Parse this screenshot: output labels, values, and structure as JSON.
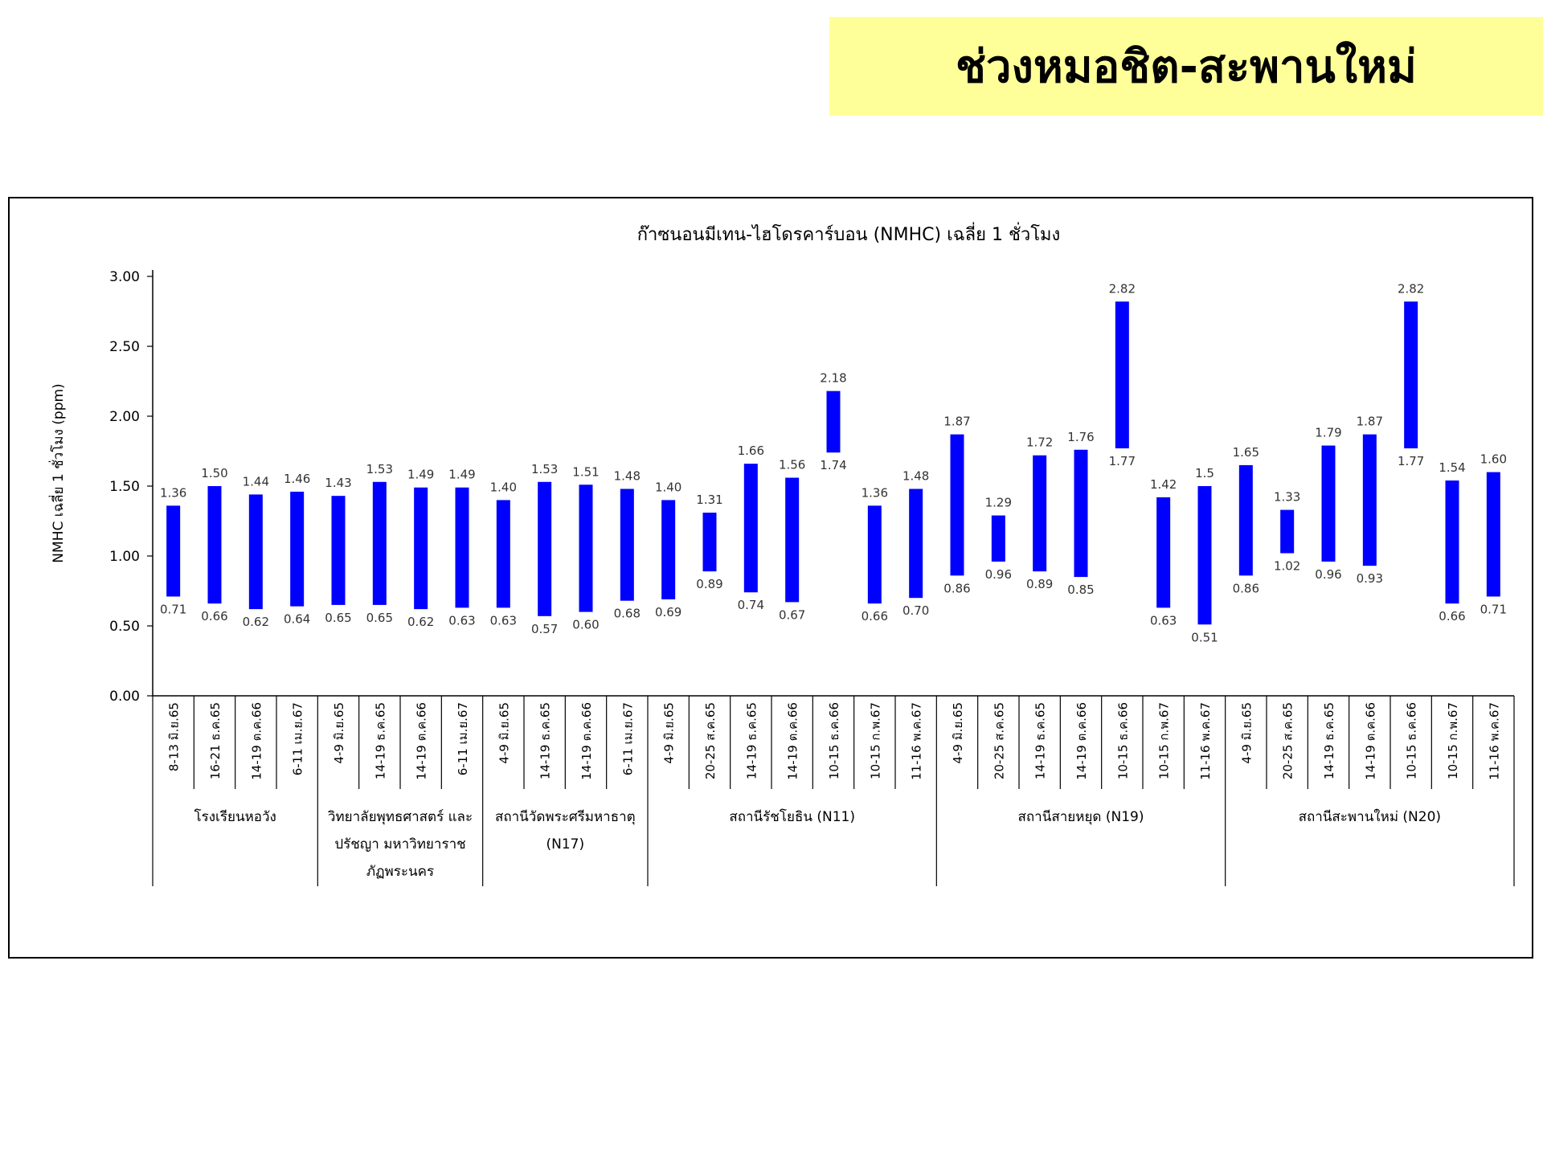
{
  "banner": {
    "title": "ช่วงหมอชิต-สะพานใหม่"
  },
  "colors": {
    "banner_bg": "#ffff99",
    "bar": "#0000ff"
  },
  "chart_data": {
    "type": "bar",
    "subtype": "floating-range",
    "title": "ก๊าซนอนมีเทน-ไฮโดรคาร์บอน (NMHC) เฉลี่ย 1 ชั่วโมง",
    "xlabel": "",
    "ylabel": "NMHC เฉลี่ย 1 ชั่วโมง (ppm)",
    "ylim": [
      0,
      3
    ],
    "yticks": [
      "0.00",
      "0.50",
      "1.00",
      "1.50",
      "2.00",
      "2.50",
      "3.00"
    ],
    "grid": false,
    "legend": "none",
    "groups": [
      {
        "name": "โรงเรียนหอวัง",
        "categories": [
          "8-13 มิ.ย.65",
          "16-21 ธ.ค.65",
          "14-19 ต.ค.66",
          "6-11 เม.ย.67"
        ],
        "low": [
          0.71,
          0.66,
          0.62,
          0.64
        ],
        "high": [
          1.36,
          1.5,
          1.44,
          1.46
        ],
        "low_labels": [
          "0.71",
          "0.66",
          "0.62",
          "0.64"
        ],
        "high_labels": [
          "1.36",
          "1.50",
          "1.44",
          "1.46"
        ]
      },
      {
        "name": "วิทยาลัยพุทธศาสตร์ และปรัชญา มหาวิทยาราชภัฏพระนคร",
        "name_lines": [
          "วิทยาลัยพุทธศาสตร์ และ",
          "ปรัชญา มหาวิทยาราช",
          "ภัฏพระนคร"
        ],
        "categories": [
          "4-9 มิ.ย.65",
          "14-19 ธ.ค.65",
          "14-19 ต.ค.66",
          "6-11 เม.ย.67"
        ],
        "low": [
          0.65,
          0.65,
          0.62,
          0.63
        ],
        "high": [
          1.43,
          1.53,
          1.49,
          1.49
        ],
        "low_labels": [
          "0.65",
          "0.65",
          "0.62",
          "0.63"
        ],
        "high_labels": [
          "1.43",
          "1.53",
          "1.49",
          "1.49"
        ]
      },
      {
        "name": "สถานีวัดพระศรีมหาธาตุ (N17)",
        "name_lines": [
          "สถานีวัดพระศรีมหาธาตุ",
          "(N17)"
        ],
        "categories": [
          "4-9 มิ.ย.65",
          "14-19 ธ.ค.65",
          "14-19 ต.ค.66",
          "6-11 เม.ย.67"
        ],
        "low": [
          0.63,
          0.57,
          0.6,
          0.68
        ],
        "high": [
          1.4,
          1.53,
          1.51,
          1.48
        ],
        "low_labels": [
          "0.63",
          "0.57",
          "0.60",
          "0.68"
        ],
        "high_labels": [
          "1.40",
          "1.53",
          "1.51",
          "1.48"
        ]
      },
      {
        "name": "สถานีรัชโยธิน (N11)",
        "categories": [
          "4-9 มิ.ย.65",
          "20-25 ส.ค.65",
          "14-19 ธ.ค.65",
          "14-19 ต.ค.66",
          "10-15 ธ.ค.66",
          "10-15 ก.พ.67",
          "11-16 พ.ค.67"
        ],
        "low": [
          0.69,
          0.89,
          0.74,
          0.67,
          1.74,
          0.66,
          0.7
        ],
        "high": [
          1.4,
          1.31,
          1.66,
          1.56,
          2.18,
          1.36,
          1.48
        ],
        "low_labels": [
          "0.69",
          "0.89",
          "0.74",
          "0.67",
          "1.74",
          "0.66",
          "0.70"
        ],
        "high_labels": [
          "1.40",
          "1.31",
          "1.66",
          "1.56",
          "2.18",
          "1.36",
          "1.48"
        ]
      },
      {
        "name": "สถานีสายหยุด (N19)",
        "categories": [
          "4-9 มิ.ย.65",
          "20-25 ส.ค.65",
          "14-19 ธ.ค.65",
          "14-19 ต.ค.66",
          "10-15 ธ.ค.66",
          "10-15 ก.พ.67",
          "11-16 พ.ค.67"
        ],
        "low": [
          0.86,
          0.96,
          0.89,
          0.85,
          1.77,
          0.63,
          0.51
        ],
        "high": [
          1.87,
          1.29,
          1.72,
          1.76,
          2.82,
          1.42,
          1.5
        ],
        "low_labels": [
          "0.86",
          "0.96",
          "0.89",
          "0.85",
          "1.77",
          "0.63",
          "0.51"
        ],
        "high_labels": [
          "1.87",
          "1.29",
          "1.72",
          "1.76",
          "2.82",
          "1.42",
          "1.5"
        ]
      },
      {
        "name": "สถานีสะพานใหม่ (N20)",
        "categories": [
          "4-9 มิ.ย.65",
          "20-25 ส.ค.65",
          "14-19 ธ.ค.65",
          "14-19 ต.ค.66",
          "10-15 ธ.ค.66",
          "10-15 ก.พ.67",
          "11-16 พ.ค.67"
        ],
        "low": [
          0.86,
          1.02,
          0.96,
          0.93,
          1.77,
          0.66,
          0.71
        ],
        "high": [
          1.65,
          1.33,
          1.79,
          1.87,
          2.82,
          1.54,
          1.6
        ],
        "low_labels": [
          "0.86",
          "1.02",
          "0.96",
          "0.93",
          "1.77",
          "0.66",
          "0.71"
        ],
        "high_labels": [
          "1.65",
          "1.33",
          "1.79",
          "1.87",
          "2.82",
          "1.54",
          "1.60"
        ]
      }
    ]
  }
}
